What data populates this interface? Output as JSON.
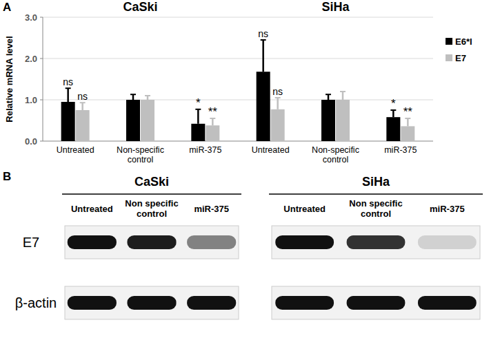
{
  "panels": [
    "A",
    "B"
  ],
  "chart_data": [
    {
      "type": "bar",
      "title": "CaSki",
      "y_label": "Relative mRNA level",
      "categories": [
        "Untreated",
        "Non-specific control",
        "miR-375"
      ],
      "ylim": [
        0,
        3
      ],
      "yticks": [
        {
          "value": 0,
          "label": "0.0"
        },
        {
          "value": 1,
          "label": "1.0"
        },
        {
          "value": 2,
          "label": "2.0"
        },
        {
          "value": 3,
          "label": "3.0"
        }
      ],
      "grid": true,
      "series": [
        {
          "color": "#000000",
          "values": [
            0.95,
            1.0,
            0.42
          ],
          "errors": [
            0.33,
            0.13,
            0.35
          ],
          "annotations": [
            "ns",
            null,
            "*"
          ]
        },
        {
          "color": "#bfbfbf",
          "values": [
            0.75,
            1.0,
            0.38
          ],
          "errors": [
            0.18,
            0.1,
            0.17
          ],
          "annotations": [
            "ns",
            null,
            "**"
          ]
        }
      ]
    },
    {
      "type": "bar",
      "title": "SiHa",
      "categories": [
        "Untreated",
        "Non-specific control",
        "miR-375"
      ],
      "ylim": [
        0,
        3
      ],
      "yticks": [
        0,
        1,
        2,
        3
      ],
      "grid": true,
      "tick_labels": "x",
      "legend": "right",
      "series": [
        {
          "name": "E6*I",
          "color": "#000000",
          "values": [
            1.68,
            1.0,
            0.58
          ],
          "errors": [
            0.77,
            0.13,
            0.17
          ],
          "annotations": [
            "ns",
            null,
            "*"
          ]
        },
        {
          "name": "E7",
          "color": "#bfbfbf",
          "values": [
            0.77,
            1.0,
            0.36
          ],
          "errors": [
            0.28,
            0.2,
            0.19
          ],
          "annotations": [
            "ns",
            null,
            "**"
          ]
        }
      ]
    }
  ],
  "blots": [
    {
      "title": "CaSki",
      "lanes": [
        "Untreated",
        "Non specific control",
        "miR-375"
      ],
      "rows": [
        {
          "label": "E7",
          "band_intensity": [
            1.0,
            0.95,
            0.5
          ]
        },
        {
          "label": "β-actin",
          "band_intensity": [
            1.0,
            1.0,
            1.0
          ]
        }
      ]
    },
    {
      "title": "SiHa",
      "lanes": [
        "Untreated",
        "Non specific control",
        "miR-375"
      ],
      "rows": [
        {
          "band_intensity": [
            1.0,
            0.85,
            0.15
          ]
        },
        {
          "band_intensity": [
            1.0,
            1.0,
            1.0
          ]
        }
      ]
    }
  ]
}
